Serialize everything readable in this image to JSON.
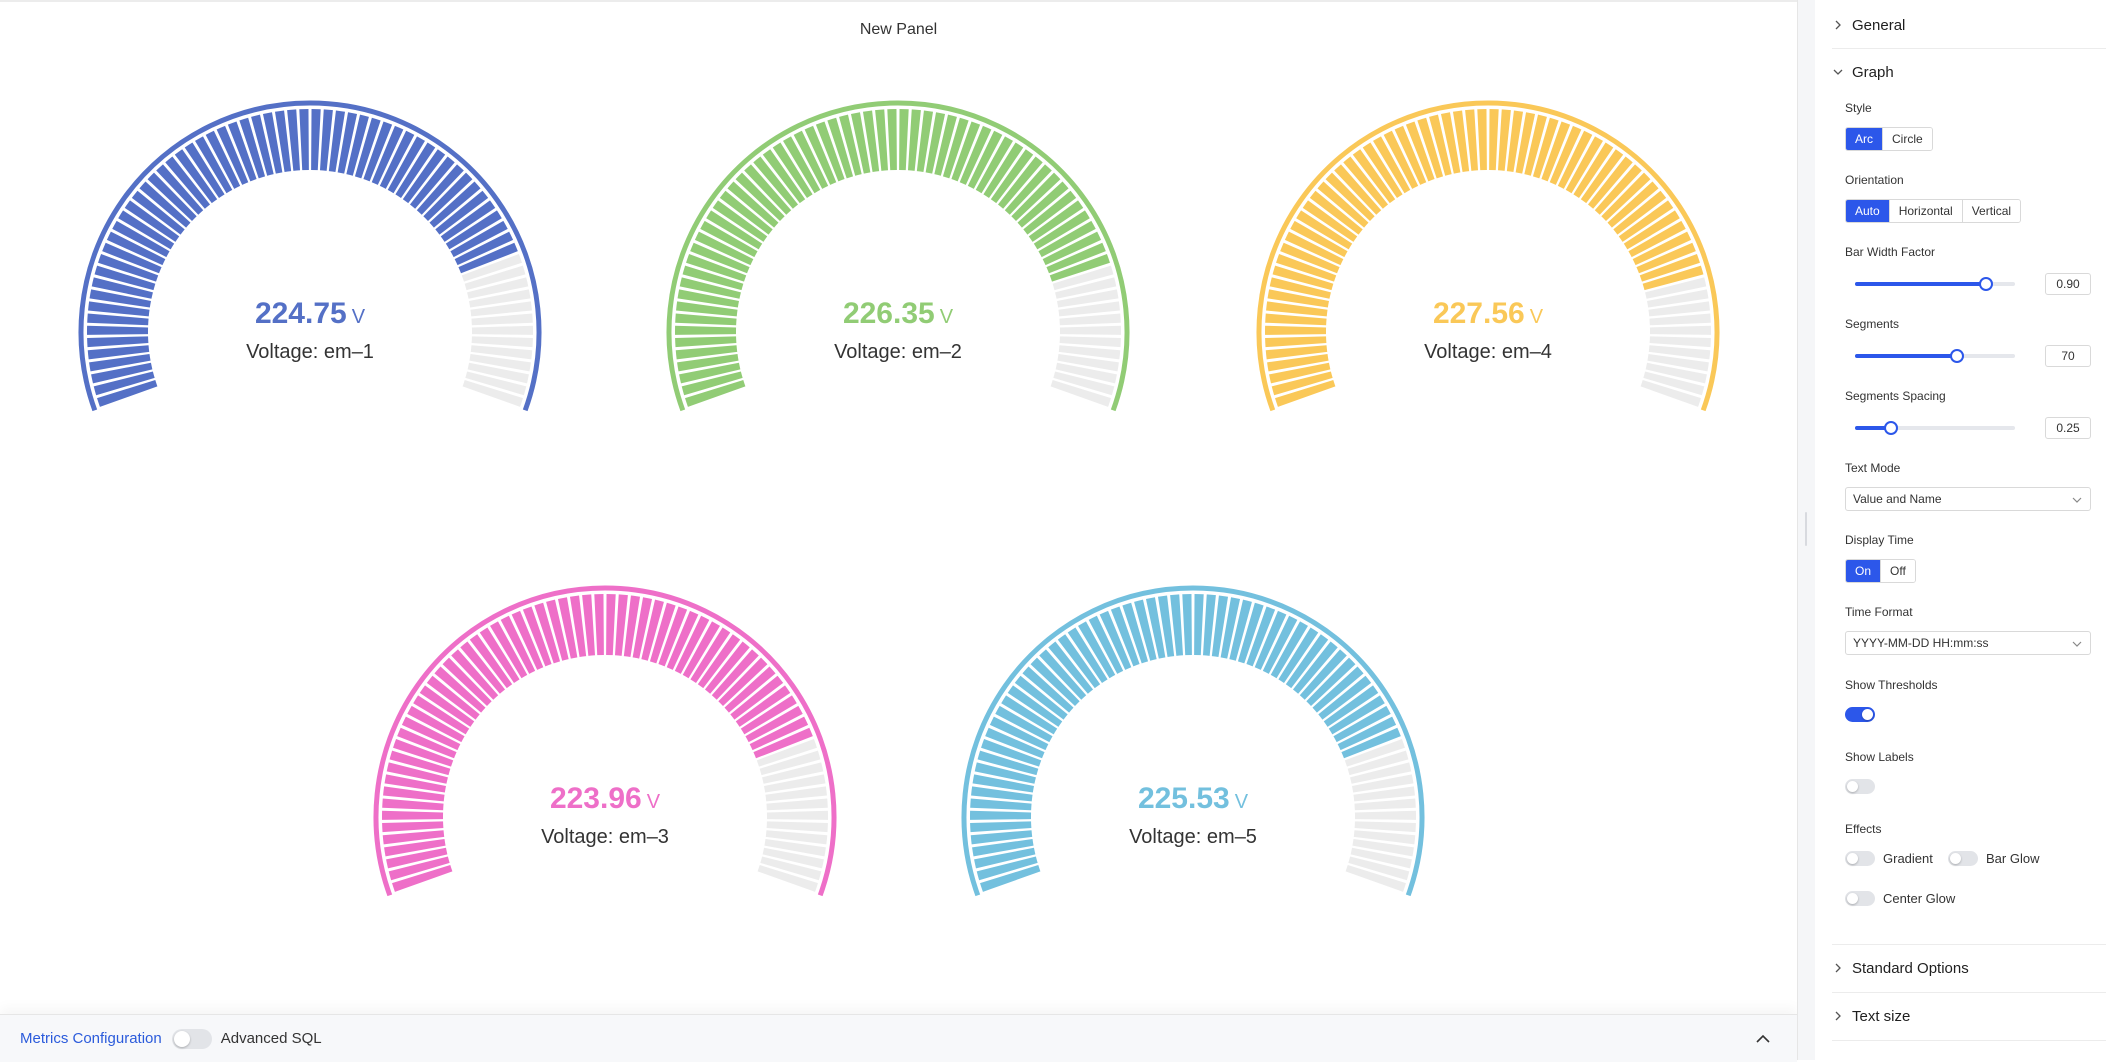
{
  "panel": {
    "title": "New Panel"
  },
  "chart_data": {
    "type": "gauge",
    "style": "arc",
    "unit": "V",
    "segments": 70,
    "gauges": [
      {
        "name": "Voltage: em–1",
        "value": 224.75,
        "display": "224.75",
        "fraction": 0.82,
        "color": "#5470c6"
      },
      {
        "name": "Voltage: em–2",
        "value": 226.35,
        "display": "226.35",
        "fraction": 0.83,
        "color": "#91cc75"
      },
      {
        "name": "Voltage: em–4",
        "value": 227.56,
        "display": "227.56",
        "fraction": 0.84,
        "color": "#fac858"
      },
      {
        "name": "Voltage: em–3",
        "value": 223.96,
        "display": "223.96",
        "fraction": 0.81,
        "color": "#ee6fc8"
      },
      {
        "name": "Voltage: em–5",
        "value": 225.53,
        "display": "225.53",
        "fraction": 0.82,
        "color": "#73c0de"
      }
    ]
  },
  "bottom_bar": {
    "metrics_label": "Metrics Configuration",
    "advanced_sql_label": "Advanced SQL",
    "advanced_sql_on": false
  },
  "options": {
    "general_label": "General",
    "graph_label": "Graph",
    "style": {
      "label": "Style",
      "options": [
        "Arc",
        "Circle"
      ],
      "selected": "Arc"
    },
    "orientation": {
      "label": "Orientation",
      "options": [
        "Auto",
        "Horizontal",
        "Vertical"
      ],
      "selected": "Auto"
    },
    "bar_width_factor": {
      "label": "Bar Width Factor",
      "value": "0.90",
      "fraction": 0.9
    },
    "segments": {
      "label": "Segments",
      "value": "70",
      "fraction": 0.7
    },
    "segments_spacing": {
      "label": "Segments Spacing",
      "value": "0.25",
      "fraction": 0.25
    },
    "text_mode": {
      "label": "Text Mode",
      "value": "Value and Name"
    },
    "display_time": {
      "label": "Display Time",
      "options": [
        "On",
        "Off"
      ],
      "selected": "On"
    },
    "time_format": {
      "label": "Time Format",
      "value": "YYYY-MM-DD HH:mm:ss"
    },
    "show_thresholds": {
      "label": "Show Thresholds",
      "on": true
    },
    "show_labels": {
      "label": "Show Labels",
      "on": false
    },
    "effects": {
      "label": "Effects",
      "gradient": "Gradient",
      "bar_glow": "Bar Glow",
      "center_glow": "Center Glow"
    },
    "standard_options_label": "Standard Options",
    "text_size_label": "Text size"
  },
  "colors": {
    "accent": "#2c57ea",
    "link": "#2b5bdb",
    "track": "#ececec"
  }
}
